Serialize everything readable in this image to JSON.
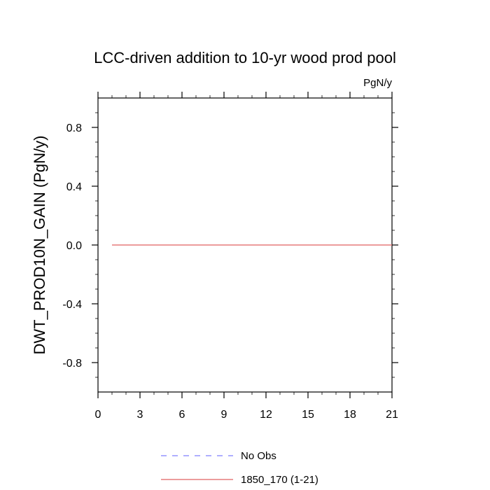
{
  "chart_data": {
    "type": "line",
    "title": "LCC-driven addition to 10-yr wood prod pool",
    "units": "PgN/y",
    "xlabel": "",
    "ylabel": "DWT_PROD10N_GAIN  (PgN/y)",
    "xlim": [
      0,
      21
    ],
    "ylim": [
      -1.0,
      1.0
    ],
    "xticks": [
      0,
      3,
      6,
      9,
      12,
      15,
      18,
      21
    ],
    "xtick_labels": [
      "0",
      "3",
      "6",
      "9",
      "12",
      "15",
      "18",
      "21"
    ],
    "yticks": [
      -0.8,
      -0.4,
      0.0,
      0.4,
      0.8
    ],
    "ytick_labels": [
      "-0.8",
      "-0.4",
      "0.0",
      "0.4",
      "0.8"
    ],
    "grid": false,
    "legend_position": "bottom",
    "series": [
      {
        "name": "No Obs",
        "color": "#7f7fff",
        "dash": "dashed",
        "x": [],
        "y": []
      },
      {
        "name": "1850_170 (1-21)",
        "color": "#e06060",
        "dash": "solid",
        "x": [
          1,
          21
        ],
        "y": [
          0.0,
          0.0
        ]
      }
    ]
  }
}
